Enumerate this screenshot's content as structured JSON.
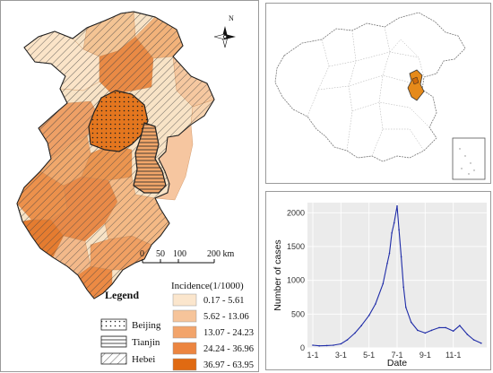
{
  "map": {
    "north_label": "N",
    "scale": {
      "ticks": [
        "0",
        "50",
        "100",
        "200 km"
      ]
    },
    "legend": {
      "title": "Legend",
      "regions": [
        {
          "label": "Beijing",
          "pattern": "dots"
        },
        {
          "label": "Tianjin",
          "pattern": "horizontal-lines"
        },
        {
          "label": "Hebei",
          "pattern": "diagonal-lines"
        }
      ],
      "incidence_title": "Incidence(1/1000)",
      "classes": [
        {
          "label": "0.17 - 5.61",
          "color": "#fbe6cd"
        },
        {
          "label": "5.62 - 13.06",
          "color": "#f6c49a"
        },
        {
          "label": "13.07 - 24.23",
          "color": "#f2a46b"
        },
        {
          "label": "24.24 - 36.96",
          "color": "#ec8540"
        },
        {
          "label": "36.97 - 63.95",
          "color": "#e06a12"
        }
      ]
    }
  },
  "inset": {
    "highlight_color": "#e68a1a"
  },
  "chart_data": {
    "type": "line",
    "xlabel": "Date",
    "ylabel": "Number of cases",
    "x_ticks": [
      "1-1",
      "3-1",
      "5-1",
      "7-1",
      "9-1",
      "11-1"
    ],
    "x": [
      "1-1",
      "1-15",
      "2-1",
      "2-15",
      "3-1",
      "3-15",
      "4-1",
      "4-15",
      "5-1",
      "5-15",
      "6-1",
      "6-10",
      "6-15",
      "6-20",
      "6-25",
      "7-1",
      "7-5",
      "7-10",
      "7-15",
      "7-20",
      "8-1",
      "8-15",
      "9-1",
      "9-15",
      "10-1",
      "10-15",
      "11-1",
      "11-15",
      "12-1",
      "12-15",
      "12-31"
    ],
    "y_ticks": [
      0,
      500,
      1000,
      1500,
      2000
    ],
    "ylim": [
      0,
      2150
    ],
    "series": [
      {
        "color": "#1f2ca8",
        "values": [
          40,
          30,
          35,
          40,
          60,
          120,
          220,
          330,
          480,
          650,
          950,
          1250,
          1400,
          1700,
          1850,
          2100,
          1750,
          1350,
          900,
          600,
          380,
          260,
          220,
          260,
          300,
          300,
          250,
          330,
          200,
          120,
          70
        ]
      }
    ],
    "grid": true
  }
}
